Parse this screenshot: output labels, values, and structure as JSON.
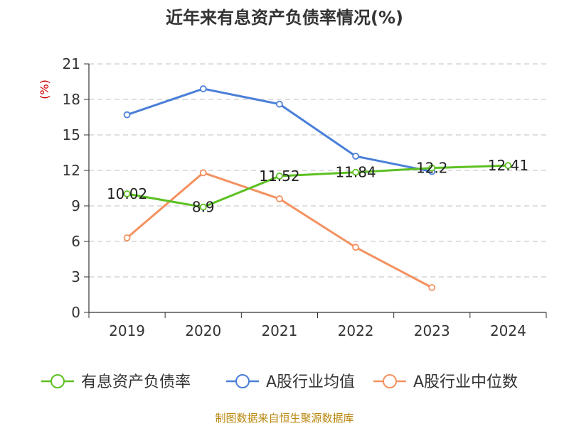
{
  "chart_data": {
    "type": "line",
    "title": "近年来有息资产负债率情况(%)",
    "ylabel": "(%)",
    "categories": [
      "2019",
      "2020",
      "2021",
      "2022",
      "2023",
      "2024"
    ],
    "y_ticks": [
      0,
      3,
      6,
      9,
      12,
      15,
      18,
      21
    ],
    "ylim": [
      0,
      21
    ],
    "grid": true,
    "legend_position": "bottom",
    "series": [
      {
        "name": "有息资产负债率",
        "color": "#5cc021",
        "values": [
          10.02,
          8.9,
          11.52,
          11.84,
          12.2,
          12.41
        ],
        "labels": [
          "10.02",
          "8.9",
          "11.52",
          "11.84",
          "12.2",
          "12.41"
        ]
      },
      {
        "name": "A股行业均值",
        "color": "#4a7fd8",
        "values": [
          16.7,
          18.9,
          17.6,
          13.2,
          11.9,
          null
        ]
      },
      {
        "name": "A股行业中位数",
        "color": "#f49160",
        "values": [
          6.3,
          11.8,
          9.6,
          5.5,
          2.1,
          null
        ]
      }
    ],
    "source": "制图数据来自恒生聚源数据库"
  }
}
